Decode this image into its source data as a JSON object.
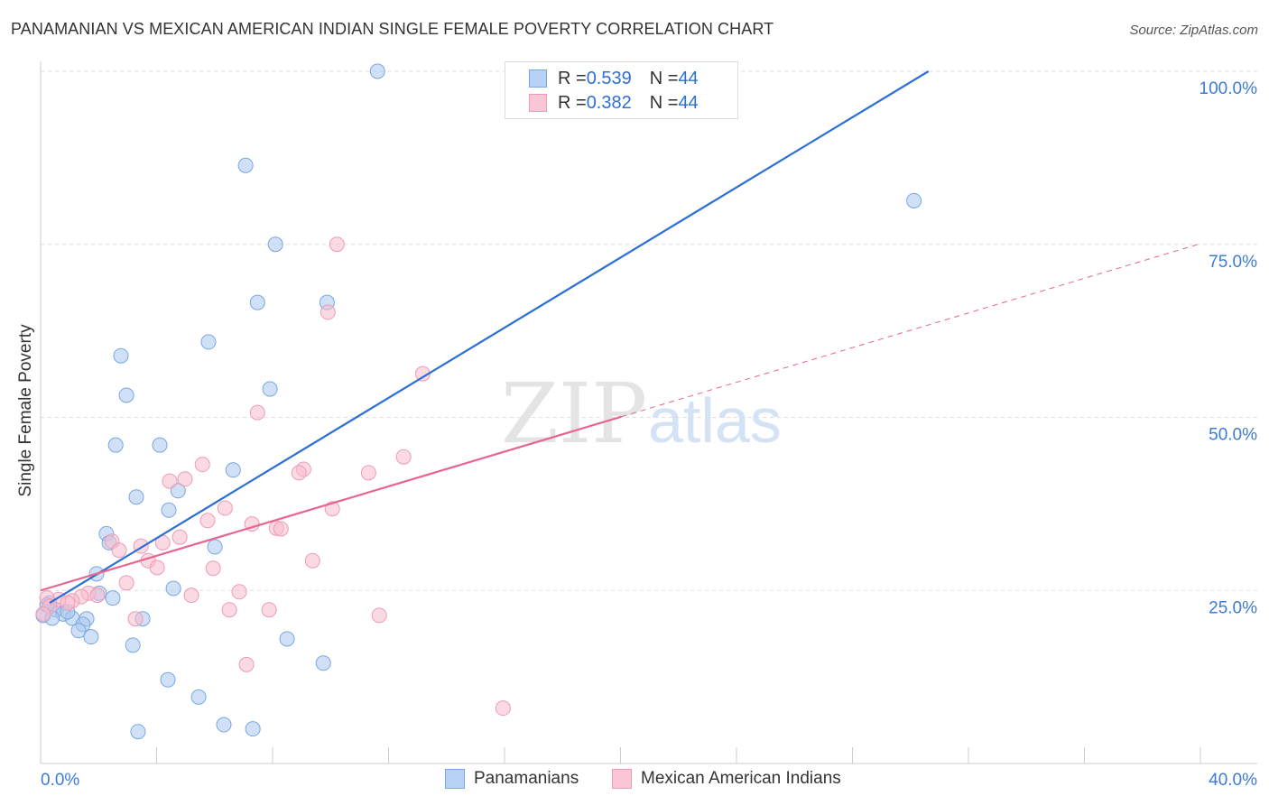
{
  "title": "PANAMANIAN VS MEXICAN AMERICAN INDIAN SINGLE FEMALE POVERTY CORRELATION CHART",
  "source": "Source: ZipAtlas.com",
  "watermark": "ZIPatlas",
  "legend": {
    "rows": [
      {
        "r_label": "R = ",
        "r_value": "0.539",
        "n_label": "N = ",
        "n_value": "44"
      },
      {
        "r_label": "R = ",
        "r_value": "0.382",
        "n_label": "N = ",
        "n_value": "44"
      }
    ]
  },
  "chart_data": {
    "type": "scatter",
    "title": "PANAMANIAN VS MEXICAN AMERICAN INDIAN SINGLE FEMALE POVERTY CORRELATION CHART",
    "xlabel": "",
    "ylabel": "Single Female Poverty",
    "xlim": [
      0,
      40
    ],
    "ylim": [
      0,
      100
    ],
    "x_tick_labels": [
      "0.0%",
      "40.0%"
    ],
    "y_tick_labels": [
      "100.0%",
      "75.0%",
      "50.0%",
      "25.0%"
    ],
    "y_ticks": [
      100,
      75,
      50,
      25
    ],
    "grid": true,
    "legend_placement": "top-center",
    "colors": {
      "blue": "#2a6fd6",
      "blue_fill": "#a9c8f0",
      "pink": "#e8668e",
      "pink_fill": "#f7bccd",
      "tick": "#3d7bd9"
    },
    "series": [
      {
        "name": "Panamanians",
        "color": "blue",
        "points": [
          [
            11.62,
            100.0
          ],
          [
            7.07,
            86.4
          ],
          [
            30.12,
            81.3
          ],
          [
            8.1,
            75.0
          ],
          [
            7.48,
            66.6
          ],
          [
            9.88,
            66.6
          ],
          [
            5.79,
            60.9
          ],
          [
            2.77,
            58.9
          ],
          [
            2.96,
            53.2
          ],
          [
            7.91,
            54.1
          ],
          [
            2.59,
            46.0
          ],
          [
            4.11,
            46.0
          ],
          [
            6.64,
            42.4
          ],
          [
            3.3,
            38.5
          ],
          [
            4.74,
            39.4
          ],
          [
            4.42,
            36.6
          ],
          [
            2.27,
            33.2
          ],
          [
            2.37,
            31.9
          ],
          [
            6.01,
            31.3
          ],
          [
            1.93,
            27.4
          ],
          [
            4.58,
            25.3
          ],
          [
            2.02,
            24.6
          ],
          [
            2.49,
            23.9
          ],
          [
            0.31,
            23.2
          ],
          [
            0.53,
            22.2
          ],
          [
            0.78,
            21.6
          ],
          [
            1.09,
            21.0
          ],
          [
            1.59,
            20.9
          ],
          [
            0.09,
            21.4
          ],
          [
            0.4,
            21.0
          ],
          [
            1.46,
            20.1
          ],
          [
            1.31,
            19.2
          ],
          [
            1.74,
            18.3
          ],
          [
            3.52,
            20.9
          ],
          [
            3.18,
            17.1
          ],
          [
            8.5,
            18.0
          ],
          [
            9.75,
            14.5
          ],
          [
            4.39,
            12.1
          ],
          [
            5.45,
            9.6
          ],
          [
            3.36,
            4.6
          ],
          [
            6.32,
            5.6
          ],
          [
            7.32,
            5.0
          ],
          [
            0.22,
            22.9
          ],
          [
            0.93,
            21.9
          ]
        ],
        "trend": {
          "from": [
            0.31,
            23.2
          ],
          "to": [
            30.62,
            100.0
          ]
        }
      },
      {
        "name": "Mexican American Indians",
        "color": "pink",
        "points": [
          [
            10.22,
            75.0
          ],
          [
            9.91,
            65.2
          ],
          [
            13.18,
            56.3
          ],
          [
            7.48,
            50.7
          ],
          [
            12.52,
            44.3
          ],
          [
            5.58,
            43.2
          ],
          [
            9.07,
            42.5
          ],
          [
            8.91,
            42.0
          ],
          [
            11.31,
            42.0
          ],
          [
            4.98,
            41.1
          ],
          [
            4.45,
            40.8
          ],
          [
            6.36,
            36.9
          ],
          [
            10.06,
            36.8
          ],
          [
            5.76,
            35.1
          ],
          [
            7.29,
            34.6
          ],
          [
            8.13,
            34.0
          ],
          [
            8.29,
            33.9
          ],
          [
            4.8,
            32.7
          ],
          [
            2.46,
            32.1
          ],
          [
            3.46,
            31.4
          ],
          [
            2.71,
            30.8
          ],
          [
            4.21,
            31.9
          ],
          [
            3.71,
            29.3
          ],
          [
            9.38,
            29.3
          ],
          [
            4.02,
            28.3
          ],
          [
            5.95,
            28.2
          ],
          [
            2.96,
            26.1
          ],
          [
            6.85,
            24.8
          ],
          [
            5.2,
            24.3
          ],
          [
            1.65,
            24.6
          ],
          [
            1.96,
            24.3
          ],
          [
            1.4,
            24.1
          ],
          [
            0.62,
            23.7
          ],
          [
            1.09,
            23.5
          ],
          [
            0.22,
            23.9
          ],
          [
            6.51,
            22.2
          ],
          [
            7.88,
            22.2
          ],
          [
            3.27,
            20.9
          ],
          [
            11.68,
            21.4
          ],
          [
            7.1,
            14.3
          ],
          [
            15.95,
            8.0
          ],
          [
            0.31,
            22.7
          ],
          [
            0.09,
            21.6
          ],
          [
            0.93,
            23.2
          ]
        ],
        "trend": {
          "from": [
            0,
            25.0
          ],
          "to": [
            20.03,
            50.1
          ],
          "dashed_to": [
            40,
            75.1
          ]
        }
      }
    ]
  }
}
